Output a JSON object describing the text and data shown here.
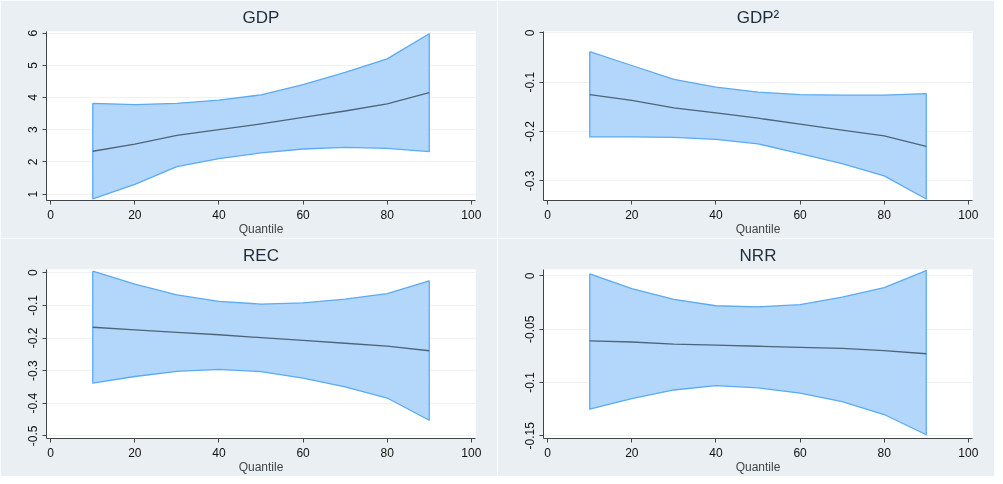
{
  "chart_data": [
    {
      "type": "line",
      "title": "GDP",
      "xlabel": "Quantile",
      "x": [
        10,
        20,
        30,
        40,
        50,
        60,
        70,
        80,
        90
      ],
      "xlim": [
        -1,
        101
      ],
      "xticks": [
        0,
        20,
        40,
        60,
        80,
        100
      ],
      "ylim": [
        0.8,
        6.05
      ],
      "yticks": [
        1,
        2,
        3,
        4,
        5,
        6
      ],
      "grid": "y",
      "series": [
        {
          "color": "#4f6477",
          "values": [
            2.33,
            2.55,
            2.82,
            3.0,
            3.18,
            3.38,
            3.58,
            3.8,
            4.15
          ],
          "lower": [
            0.85,
            1.3,
            1.85,
            2.1,
            2.28,
            2.4,
            2.45,
            2.42,
            2.32
          ],
          "upper": [
            3.82,
            3.78,
            3.82,
            3.92,
            4.08,
            4.4,
            4.78,
            5.2,
            5.98
          ]
        }
      ]
    },
    {
      "type": "line",
      "title": "GDP²",
      "xlabel": "Quantile",
      "x": [
        10,
        20,
        30,
        40,
        50,
        60,
        70,
        80,
        90
      ],
      "xlim": [
        -1,
        101
      ],
      "xticks": [
        0,
        20,
        40,
        60,
        80,
        100
      ],
      "ylim": [
        -0.34,
        0.003
      ],
      "yticks": [
        0,
        -0.1,
        -0.2,
        -0.3
      ],
      "grid": "y",
      "series": [
        {
          "color": "#4f6477",
          "values": [
            -0.125,
            -0.137,
            -0.152,
            -0.162,
            -0.173,
            -0.185,
            -0.197,
            -0.209,
            -0.23
          ],
          "lower": [
            -0.211,
            -0.211,
            -0.212,
            -0.216,
            -0.225,
            -0.245,
            -0.265,
            -0.29,
            -0.337
          ],
          "upper": [
            -0.038,
            -0.066,
            -0.094,
            -0.11,
            -0.12,
            -0.125,
            -0.126,
            -0.126,
            -0.123
          ]
        }
      ]
    },
    {
      "type": "line",
      "title": "REC",
      "xlabel": "Quantile",
      "x": [
        10,
        20,
        30,
        40,
        50,
        60,
        70,
        80,
        90
      ],
      "xlim": [
        -1,
        101
      ],
      "xticks": [
        0,
        20,
        40,
        60,
        80,
        100
      ],
      "ylim": [
        -0.508,
        0.01
      ],
      "yticks": [
        0,
        -0.1,
        -0.2,
        -0.3,
        -0.4,
        -0.5
      ],
      "grid": "y",
      "series": [
        {
          "color": "#4f6477",
          "values": [
            -0.167,
            -0.175,
            -0.183,
            -0.19,
            -0.199,
            -0.207,
            -0.216,
            -0.225,
            -0.239
          ],
          "lower": [
            -0.338,
            -0.318,
            -0.302,
            -0.296,
            -0.303,
            -0.323,
            -0.35,
            -0.384,
            -0.452
          ],
          "upper": [
            0.005,
            -0.035,
            -0.068,
            -0.088,
            -0.096,
            -0.092,
            -0.081,
            -0.064,
            -0.025
          ]
        }
      ]
    },
    {
      "type": "line",
      "title": "NRR",
      "xlabel": "Quantile",
      "x": [
        10,
        20,
        30,
        40,
        50,
        60,
        70,
        80,
        90
      ],
      "xlim": [
        -1,
        101
      ],
      "xticks": [
        0,
        20,
        40,
        60,
        80,
        100
      ],
      "ylim": [
        -0.1525,
        0.006
      ],
      "yticks": [
        0,
        -0.05,
        -0.1,
        -0.15
      ],
      "grid": "y",
      "series": [
        {
          "color": "#4f6477",
          "values": [
            -0.061,
            -0.062,
            -0.064,
            -0.065,
            -0.066,
            -0.067,
            -0.068,
            -0.07,
            -0.073
          ],
          "lower": [
            -0.125,
            -0.115,
            -0.107,
            -0.103,
            -0.105,
            -0.11,
            -0.118,
            -0.13,
            -0.149
          ],
          "upper": [
            0.002,
            -0.012,
            -0.022,
            -0.028,
            -0.029,
            -0.027,
            -0.02,
            -0.011,
            0.005
          ]
        }
      ]
    }
  ]
}
